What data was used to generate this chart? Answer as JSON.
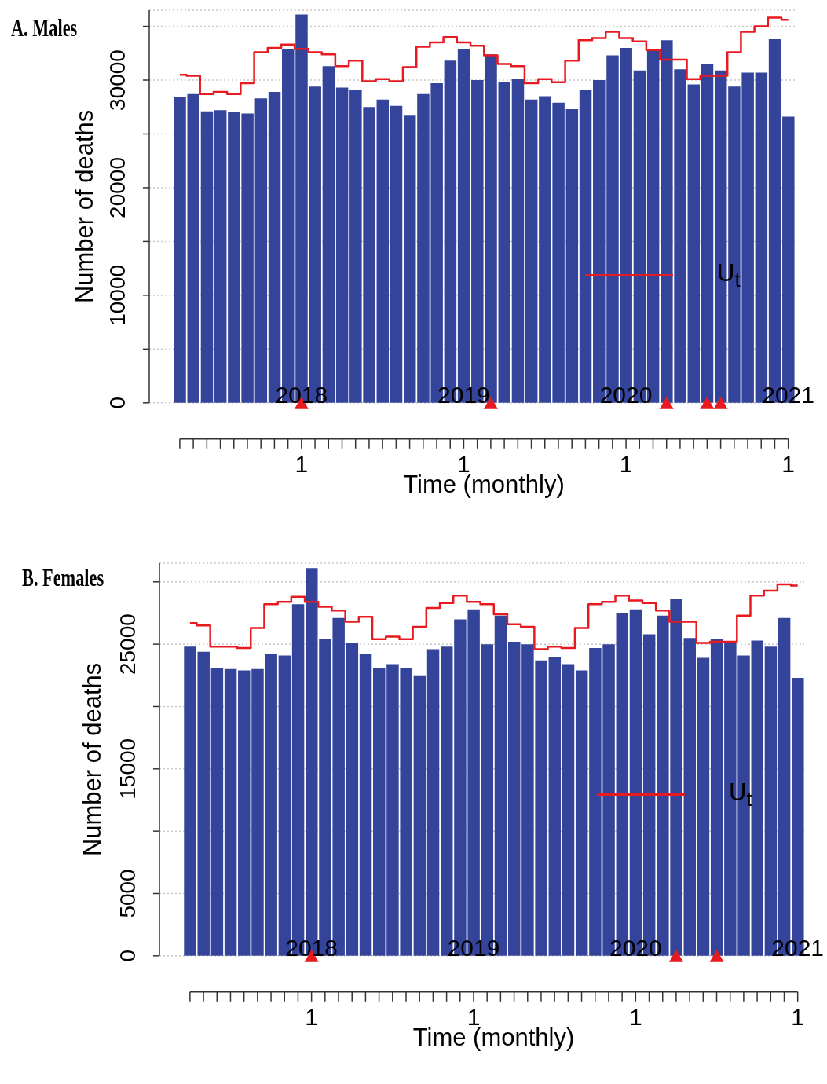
{
  "chart_data": [
    {
      "type": "bar",
      "title": "A. Males",
      "xlabel": "Time (monthly)",
      "annotations": [
        "1",
        "1",
        "1",
        "1"
      ],
      "ylabel": "Number of deaths",
      "grid": "y",
      "legend": "right",
      "x": [
        "2017-04",
        "2017-05",
        "2017-06",
        "2017-07",
        "2017-08",
        "2017-09",
        "2017-10",
        "2017-11",
        "2017-12",
        "2018-01",
        "2018-02",
        "2018-03",
        "2018-04",
        "2018-05",
        "2018-06",
        "2018-07",
        "2018-08",
        "2018-09",
        "2018-10",
        "2018-11",
        "2018-12",
        "2019-01",
        "2019-02",
        "2019-03",
        "2019-04",
        "2019-05",
        "2019-06",
        "2019-07",
        "2019-08",
        "2019-09",
        "2019-10",
        "2019-11",
        "2019-12",
        "2020-01",
        "2020-02",
        "2020-03",
        "2020-04",
        "2020-05",
        "2020-06",
        "2020-07",
        "2020-08",
        "2020-09",
        "2020-10",
        "2020-11",
        "2020-12",
        "2021-01"
      ],
      "xlim": [
        "2017-03-16",
        "2021-01-16"
      ],
      "xticks": [
        {
          "value": "2018-01",
          "label": "2018"
        },
        {
          "value": "2019-01",
          "label": "2019"
        },
        {
          "value": "2020-01",
          "label": "2020"
        },
        {
          "value": "2021-01",
          "label": "2021"
        }
      ],
      "ylim": [
        0,
        36500
      ],
      "yticks": [
        0,
        {
          "value": 5000,
          "label": null
        },
        10000,
        {
          "value": 15000,
          "label": null
        },
        20000,
        {
          "value": 25000,
          "label": null
        },
        30000,
        {
          "value": 35000,
          "label": null
        }
      ],
      "series": [
        {
          "color": "#34449b",
          "values": [
            28400,
            28700,
            27100,
            27200,
            27000,
            26900,
            28300,
            28900,
            32900,
            36100,
            29400,
            31300,
            29300,
            29100,
            27500,
            28200,
            27600,
            26700,
            28700,
            29700,
            31800,
            32900,
            30000,
            32400,
            29800,
            30100,
            28200,
            28500,
            27900,
            27300,
            29100,
            30000,
            32300,
            33000,
            30900,
            32800,
            33700,
            31000,
            29600,
            31500,
            30900,
            29400,
            30700,
            30700,
            33800,
            26600
          ]
        },
        {
          "type": "step",
          "name": "U$_{t}$",
          "color": "#e8191f",
          "values": [
            30500,
            30400,
            28700,
            28900,
            28700,
            29700,
            32600,
            33000,
            33300,
            32900,
            32600,
            32400,
            31300,
            31800,
            29900,
            30100,
            29900,
            31200,
            33100,
            33500,
            34000,
            33500,
            33200,
            32300,
            31500,
            31300,
            29700,
            30100,
            29800,
            31800,
            33700,
            33900,
            34500,
            33900,
            33600,
            32800,
            31900,
            31900,
            30100,
            30400,
            30400,
            32600,
            34500,
            35000,
            35800,
            35600
          ]
        },
        {
          "type": "scatter",
          "marker": "triangle",
          "color": "#e8191f",
          "x": [
            "2018-01",
            "2019-03",
            "2020-04",
            "2020-07",
            "2020-08"
          ],
          "values": [
            0,
            0,
            0,
            0,
            0
          ]
        }
      ]
    },
    {
      "type": "bar",
      "title": "B. Females",
      "xlabel": "Time (monthly)",
      "annotations": [
        "1",
        "1",
        "1",
        "1"
      ],
      "ylabel": "Number of deaths",
      "grid": "y",
      "legend": "right",
      "x": [
        "2017-04",
        "2017-05",
        "2017-06",
        "2017-07",
        "2017-08",
        "2017-09",
        "2017-10",
        "2017-11",
        "2017-12",
        "2018-01",
        "2018-02",
        "2018-03",
        "2018-04",
        "2018-05",
        "2018-06",
        "2018-07",
        "2018-08",
        "2018-09",
        "2018-10",
        "2018-11",
        "2018-12",
        "2019-01",
        "2019-02",
        "2019-03",
        "2019-04",
        "2019-05",
        "2019-06",
        "2019-07",
        "2019-08",
        "2019-09",
        "2019-10",
        "2019-11",
        "2019-12",
        "2020-01",
        "2020-02",
        "2020-03",
        "2020-04",
        "2020-05",
        "2020-06",
        "2020-07",
        "2020-08",
        "2020-09",
        "2020-10",
        "2020-11",
        "2020-12",
        "2021-01"
      ],
      "xlim": [
        "2017-03-16",
        "2021-01-16"
      ],
      "xticks": [
        {
          "value": "2018-01",
          "label": "2018"
        },
        {
          "value": "2019-01",
          "label": "2019"
        },
        {
          "value": "2020-01",
          "label": "2020"
        },
        {
          "value": "2021-01",
          "label": "2021"
        }
      ],
      "ylim": [
        0,
        31500
      ],
      "yticks": [
        0,
        5000,
        {
          "value": 10000,
          "label": null
        },
        15000,
        {
          "value": 20000,
          "label": null
        },
        25000,
        {
          "value": 30000,
          "label": null
        }
      ],
      "series": [
        {
          "color": "#34449b",
          "values": [
            24800,
            24400,
            23100,
            23000,
            22900,
            23000,
            24200,
            24100,
            28200,
            31100,
            25400,
            27100,
            25100,
            24200,
            23100,
            23400,
            23100,
            22500,
            24600,
            24800,
            27000,
            27800,
            25000,
            27300,
            25200,
            25000,
            23700,
            24000,
            23400,
            22900,
            24700,
            25000,
            27500,
            27800,
            25800,
            27300,
            28600,
            25500,
            23900,
            25400,
            25200,
            24100,
            25300,
            24800,
            27100,
            22300
          ]
        },
        {
          "type": "step",
          "name": "U$_{t}$",
          "color": "#e8191f",
          "values": [
            26700,
            26500,
            24800,
            24800,
            24700,
            26300,
            28200,
            28400,
            28800,
            28400,
            28000,
            27700,
            26800,
            27200,
            25400,
            25600,
            25400,
            26400,
            27900,
            28300,
            28900,
            28400,
            28200,
            27400,
            26600,
            26400,
            24600,
            24800,
            24700,
            26300,
            28200,
            28400,
            28900,
            28500,
            28300,
            27700,
            26800,
            26800,
            25100,
            25200,
            25200,
            27300,
            28900,
            29300,
            29800,
            29700
          ]
        },
        {
          "type": "scatter",
          "marker": "triangle",
          "color": "#e8191f",
          "x": [
            "2018-01",
            "2020-04",
            "2020-07"
          ],
          "values": [
            0,
            0,
            0
          ]
        }
      ]
    }
  ]
}
